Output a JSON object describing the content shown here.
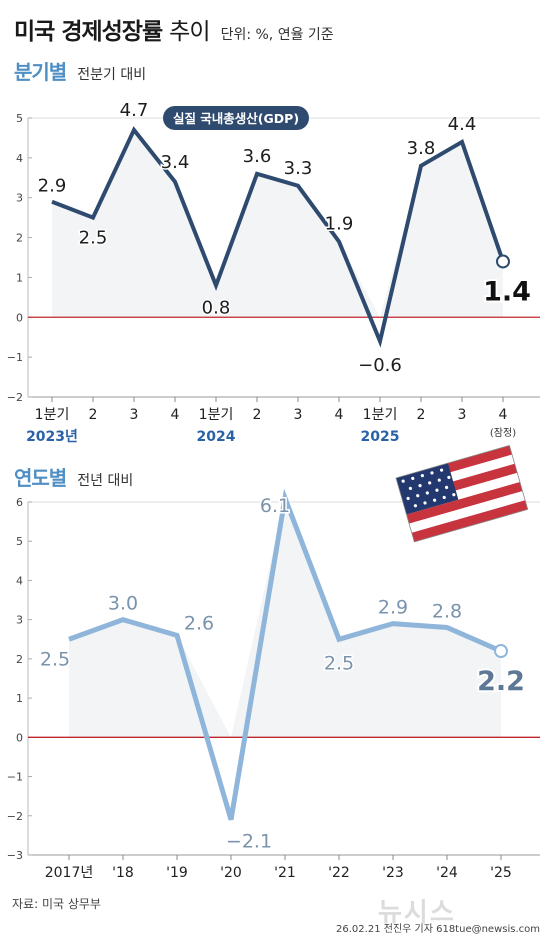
{
  "header": {
    "title_bold": "미국 경제성장률",
    "title_light": "추이",
    "unit": "단위: %, 연율 기준"
  },
  "quarterly": {
    "title": "분기별",
    "subtitle": "전분기 대비",
    "legend": "실질 국내총생산(GDP)",
    "note": "(잠정)"
  },
  "annual": {
    "title": "연도별",
    "subtitle": "전년 대비"
  },
  "footer": {
    "source": "자료: 미국 상무부",
    "byline": "26.02.21 전진우 기자 618tue@newsis.com",
    "watermark": "뉴시스"
  },
  "colors": {
    "quarterly_line": "#2e4a6e",
    "annual_line": "#8fb6da",
    "zero_line": "#c0272d",
    "title_accent": "#4f8fc4",
    "year_label": "#2a62a8"
  },
  "icons": {
    "flag": "us-flag-icon"
  },
  "chart_data": [
    {
      "type": "line",
      "title": "분기별",
      "categories": [
        "1분기",
        "2",
        "3",
        "4",
        "1분기",
        "2",
        "3",
        "4",
        "1분기",
        "2",
        "3",
        "4"
      ],
      "year_labels": [
        "2023년",
        "2024",
        "2025"
      ],
      "series": [
        {
          "name": "실질 국내총생산(GDP)",
          "values": [
            2.9,
            2.5,
            4.7,
            3.4,
            0.8,
            3.6,
            3.3,
            1.9,
            -0.6,
            3.8,
            4.4,
            1.4
          ]
        }
      ],
      "ylim": [
        -2,
        5
      ],
      "yticks": [
        -2,
        -1,
        0,
        1,
        2,
        3,
        4,
        5
      ],
      "grid": false
    },
    {
      "type": "line",
      "title": "연도별",
      "categories": [
        "2017년",
        "'18",
        "'19",
        "'20",
        "'21",
        "'22",
        "'23",
        "'24",
        "'25"
      ],
      "series": [
        {
          "values": [
            2.5,
            3.0,
            2.6,
            -2.1,
            6.1,
            2.5,
            2.9,
            2.8,
            2.2
          ]
        }
      ],
      "ylim": [
        -3,
        6
      ],
      "yticks": [
        -3,
        -2,
        -1,
        0,
        1,
        2,
        3,
        4,
        5,
        6
      ],
      "grid": false
    }
  ]
}
